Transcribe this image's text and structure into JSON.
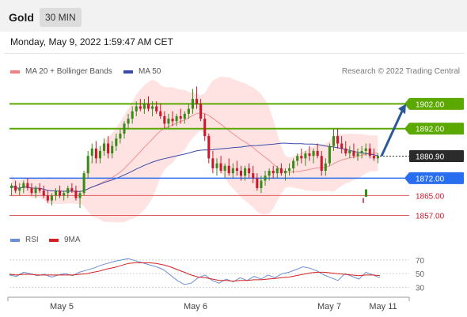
{
  "header": {
    "instrument": "Gold",
    "interval": "30 MIN"
  },
  "timestamp": "Monday, May 9, 2022 1:59:47 AM CET",
  "legend": {
    "ma20_label": "MA 20 + Bollinger Bands",
    "ma50_label": "MA 50",
    "credit": "Research © 2022 Trading Central"
  },
  "rsi_legend": {
    "rsi_label": "RSI",
    "ma_label": "9MA"
  },
  "colors": {
    "up": "#3a8a1a",
    "down": "#c8182a",
    "resistance": "#5aa800",
    "pivot": "#2a6ef0",
    "support": "#e05a5a",
    "ma50": "#3a4aa8",
    "band": "#ffdede",
    "arrow": "#2a5a9a",
    "rsi": "#6a8fd8",
    "rsi_ma": "#d42020"
  },
  "chart_data": [
    {
      "type": "candlestick",
      "title": "Gold",
      "x_dates": [
        "May 5",
        "May 6",
        "May 7",
        "May 11"
      ],
      "ylim": [
        1853,
        1912
      ],
      "levels": [
        {
          "value": 1902.0,
          "label": "1902.00",
          "kind": "resistance"
        },
        {
          "value": 1892.0,
          "label": "1892.00",
          "kind": "resistance"
        },
        {
          "value": 1880.9,
          "label": "1880.90",
          "kind": "last"
        },
        {
          "value": 1872.0,
          "label": "1872.00",
          "kind": "pivot"
        },
        {
          "value": 1865.0,
          "label": "1865.00",
          "kind": "support"
        },
        {
          "value": 1857.0,
          "label": "1857.00",
          "kind": "support"
        }
      ],
      "forecast_arrow": {
        "from": 1881,
        "to": 1902
      },
      "ohlc": [
        [
          1868,
          1870,
          1865,
          1869
        ],
        [
          1869,
          1871,
          1866,
          1867
        ],
        [
          1867,
          1870,
          1865,
          1868
        ],
        [
          1868,
          1871,
          1866,
          1870
        ],
        [
          1870,
          1872,
          1867,
          1868
        ],
        [
          1868,
          1870,
          1865,
          1866
        ],
        [
          1866,
          1869,
          1864,
          1868
        ],
        [
          1868,
          1870,
          1866,
          1867
        ],
        [
          1867,
          1869,
          1864,
          1865
        ],
        [
          1865,
          1867,
          1862,
          1863
        ],
        [
          1863,
          1866,
          1861,
          1865
        ],
        [
          1865,
          1868,
          1863,
          1867
        ],
        [
          1867,
          1869,
          1864,
          1865
        ],
        [
          1865,
          1867,
          1863,
          1866
        ],
        [
          1866,
          1869,
          1864,
          1868
        ],
        [
          1868,
          1870,
          1866,
          1867
        ],
        [
          1867,
          1869,
          1863,
          1864
        ],
        [
          1864,
          1867,
          1860,
          1866
        ],
        [
          1866,
          1875,
          1865,
          1874
        ],
        [
          1874,
          1883,
          1872,
          1881
        ],
        [
          1881,
          1886,
          1878,
          1884
        ],
        [
          1884,
          1887,
          1878,
          1880
        ],
        [
          1880,
          1885,
          1878,
          1883
        ],
        [
          1883,
          1888,
          1881,
          1886
        ],
        [
          1886,
          1889,
          1880,
          1882
        ],
        [
          1882,
          1887,
          1880,
          1885
        ],
        [
          1885,
          1890,
          1883,
          1888
        ],
        [
          1888,
          1892,
          1886,
          1890
        ],
        [
          1890,
          1895,
          1888,
          1894
        ],
        [
          1894,
          1898,
          1892,
          1896
        ],
        [
          1896,
          1901,
          1894,
          1899
        ],
        [
          1899,
          1903,
          1897,
          1901
        ],
        [
          1901,
          1904,
          1899,
          1900
        ],
        [
          1900,
          1904,
          1898,
          1902
        ],
        [
          1902,
          1905,
          1899,
          1900
        ],
        [
          1900,
          1903,
          1897,
          1901
        ],
        [
          1901,
          1903,
          1898,
          1899
        ],
        [
          1899,
          1902,
          1896,
          1897
        ],
        [
          1897,
          1899,
          1892,
          1894
        ],
        [
          1894,
          1898,
          1892,
          1896
        ],
        [
          1896,
          1899,
          1893,
          1895
        ],
        [
          1895,
          1898,
          1893,
          1897
        ],
        [
          1897,
          1900,
          1894,
          1896
        ],
        [
          1896,
          1899,
          1894,
          1898
        ],
        [
          1898,
          1902,
          1896,
          1900
        ],
        [
          1900,
          1908,
          1898,
          1904
        ],
        [
          1904,
          1909,
          1900,
          1902
        ],
        [
          1902,
          1904,
          1895,
          1896
        ],
        [
          1896,
          1898,
          1887,
          1889
        ],
        [
          1889,
          1890,
          1878,
          1880
        ],
        [
          1880,
          1883,
          1874,
          1876
        ],
        [
          1876,
          1880,
          1873,
          1878
        ],
        [
          1878,
          1881,
          1874,
          1875
        ],
        [
          1875,
          1878,
          1872,
          1877
        ],
        [
          1877,
          1880,
          1873,
          1874
        ],
        [
          1874,
          1878,
          1872,
          1876
        ],
        [
          1876,
          1879,
          1873,
          1875
        ],
        [
          1875,
          1877,
          1871,
          1873
        ],
        [
          1873,
          1877,
          1871,
          1876
        ],
        [
          1876,
          1878,
          1872,
          1874
        ],
        [
          1874,
          1877,
          1870,
          1872
        ],
        [
          1872,
          1874,
          1867,
          1868
        ],
        [
          1868,
          1873,
          1866,
          1871
        ],
        [
          1871,
          1875,
          1869,
          1873
        ],
        [
          1873,
          1876,
          1871,
          1875
        ],
        [
          1875,
          1877,
          1872,
          1874
        ],
        [
          1874,
          1877,
          1872,
          1876
        ],
        [
          1876,
          1878,
          1873,
          1874
        ],
        [
          1874,
          1876,
          1871,
          1875
        ],
        [
          1875,
          1878,
          1873,
          1876
        ],
        [
          1876,
          1880,
          1874,
          1879
        ],
        [
          1879,
          1882,
          1877,
          1881
        ],
        [
          1881,
          1884,
          1878,
          1880
        ],
        [
          1880,
          1883,
          1877,
          1882
        ],
        [
          1882,
          1885,
          1879,
          1881
        ],
        [
          1881,
          1884,
          1878,
          1883
        ],
        [
          1883,
          1886,
          1880,
          1881
        ],
        [
          1881,
          1883,
          1873,
          1875
        ],
        [
          1875,
          1880,
          1873,
          1878
        ],
        [
          1878,
          1886,
          1877,
          1885
        ],
        [
          1885,
          1892,
          1883,
          1889
        ],
        [
          1889,
          1892,
          1884,
          1886
        ],
        [
          1886,
          1889,
          1882,
          1884
        ],
        [
          1884,
          1887,
          1881,
          1882
        ],
        [
          1882,
          1885,
          1880,
          1883
        ],
        [
          1883,
          1886,
          1880,
          1881
        ],
        [
          1881,
          1884,
          1879,
          1882
        ],
        [
          1882,
          1885,
          1880,
          1883
        ],
        [
          1883,
          1886,
          1881,
          1884
        ],
        [
          1884,
          1886,
          1880,
          1881
        ],
        [
          1881,
          1884,
          1879,
          1880
        ],
        [
          1880,
          1882,
          1878,
          1881
        ]
      ]
    },
    {
      "type": "line",
      "title": "RSI",
      "ylim": [
        20,
        85
      ],
      "ticks": [
        70,
        50,
        30
      ],
      "series": [
        {
          "name": "RSI",
          "values": [
            48,
            46,
            52,
            50,
            47,
            49,
            45,
            48,
            50,
            47,
            52,
            55,
            58,
            62,
            65,
            68,
            70,
            72,
            69,
            66,
            63,
            60,
            56,
            48,
            40,
            34,
            36,
            44,
            48,
            40,
            36,
            42,
            38,
            44,
            40,
            46,
            42,
            48,
            44,
            50,
            52,
            56,
            60,
            58,
            54,
            48,
            44,
            40,
            50,
            46,
            42,
            52,
            48,
            44
          ]
        },
        {
          "name": "9MA",
          "values": [
            49,
            48,
            49,
            49,
            48,
            48,
            48,
            48,
            48,
            48,
            49,
            50,
            52,
            54,
            57,
            59,
            62,
            65,
            66,
            66,
            66,
            65,
            63,
            60,
            56,
            52,
            48,
            45,
            44,
            42,
            40,
            40,
            39,
            40,
            40,
            41,
            41,
            42,
            43,
            44,
            45,
            47,
            49,
            51,
            52,
            52,
            51,
            50,
            49,
            48,
            47,
            48,
            48,
            47
          ]
        }
      ]
    }
  ]
}
